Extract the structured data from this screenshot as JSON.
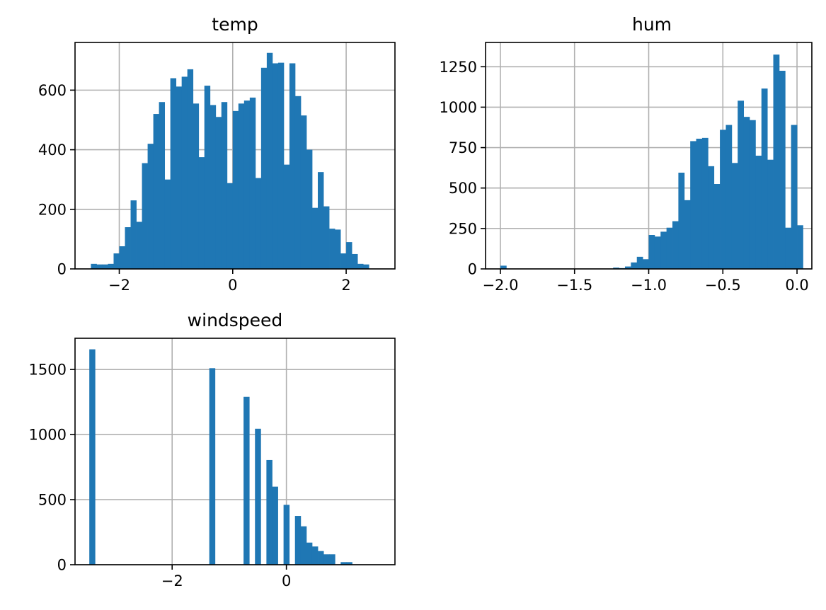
{
  "figure": {
    "bar_color": "#1f77b4",
    "grid_color": "#b0b0b0",
    "background": "#ffffff"
  },
  "chart_data": [
    {
      "type": "bar",
      "title": "temp",
      "xlabel": "",
      "ylabel": "",
      "grid": true,
      "xlim": [
        -2.78,
        2.86
      ],
      "ylim": [
        0,
        760
      ],
      "xticks": [
        -2,
        0,
        2
      ],
      "xtick_labels": [
        "−2",
        "0",
        "2"
      ],
      "yticks": [
        0,
        200,
        400,
        600
      ],
      "ytick_labels": [
        "0",
        "200",
        "400",
        "600"
      ],
      "bin_start": -2.5,
      "bin_width": 0.1,
      "values": [
        17,
        15,
        15,
        17,
        52,
        76,
        140,
        230,
        158,
        355,
        420,
        520,
        560,
        300,
        640,
        612,
        645,
        670,
        555,
        375,
        615,
        550,
        510,
        560,
        288,
        530,
        555,
        565,
        575,
        305,
        675,
        725,
        690,
        692,
        350,
        690,
        580,
        515,
        400,
        205,
        325,
        210,
        135,
        132,
        52,
        90,
        50,
        17,
        15
      ]
    },
    {
      "type": "bar",
      "title": "hum",
      "xlabel": "",
      "ylabel": "",
      "grid": true,
      "xlim": [
        -2.1,
        0.1
      ],
      "ylim": [
        0,
        1400
      ],
      "xticks": [
        -2.0,
        -1.5,
        -1.0,
        -0.5,
        0.0
      ],
      "xtick_labels": [
        "−2.0",
        "−1.5",
        "−1.0",
        "−0.5",
        "0.0"
      ],
      "yticks": [
        0,
        250,
        500,
        750,
        1000,
        1250
      ],
      "ytick_labels": [
        "0",
        "250",
        "500",
        "750",
        "1000",
        "1250"
      ],
      "bin_start": -2.0,
      "bin_width": 0.04,
      "values": [
        20,
        0,
        0,
        0,
        0,
        0,
        0,
        0,
        0,
        0,
        0,
        0,
        0,
        0,
        0,
        0,
        0,
        0,
        0,
        8,
        5,
        15,
        40,
        75,
        60,
        210,
        200,
        230,
        255,
        295,
        595,
        425,
        790,
        805,
        810,
        635,
        525,
        860,
        890,
        655,
        1040,
        940,
        920,
        700,
        1115,
        675,
        1325,
        1225,
        255,
        890,
        270
      ]
    },
    {
      "type": "bar",
      "title": "windspeed",
      "xlabel": "",
      "ylabel": "",
      "grid": true,
      "xlim": [
        -3.7,
        1.9
      ],
      "ylim": [
        0,
        1740
      ],
      "xticks": [
        -2,
        0
      ],
      "xtick_labels": [
        "−2",
        "0"
      ],
      "yticks": [
        0,
        500,
        1000,
        1500
      ],
      "ytick_labels": [
        "0",
        "500",
        "1000",
        "1500"
      ],
      "bin_start": -3.45,
      "bin_width": 0.1,
      "values": [
        1655,
        0,
        0,
        0,
        0,
        0,
        0,
        0,
        0,
        0,
        0,
        0,
        0,
        0,
        0,
        0,
        0,
        0,
        0,
        0,
        0,
        1510,
        0,
        0,
        0,
        0,
        0,
        1290,
        0,
        1045,
        0,
        805,
        600,
        0,
        460,
        0,
        375,
        295,
        170,
        140,
        105,
        80,
        80,
        0,
        20,
        20
      ]
    }
  ]
}
